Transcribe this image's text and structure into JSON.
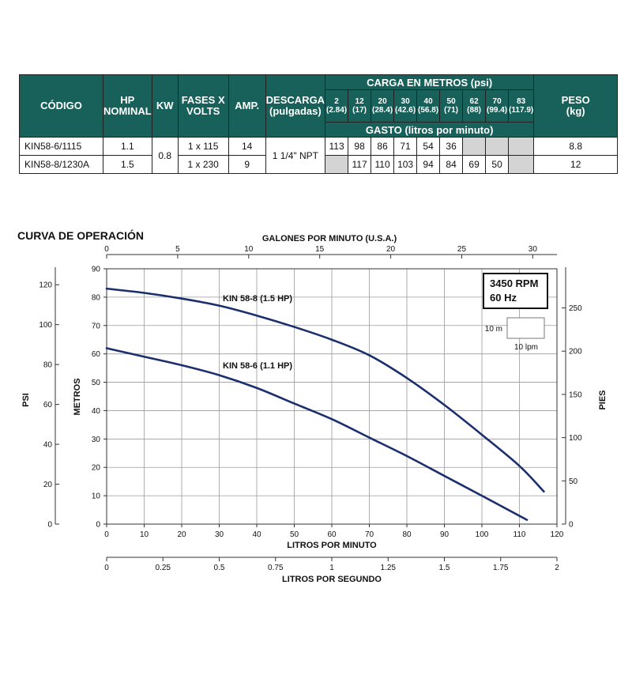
{
  "table": {
    "headers": {
      "codigo": "CÓDIGO",
      "hp_line1": "HP",
      "hp_line2": "NOMINAL",
      "kw": "KW",
      "fases_line1": "FASES X",
      "fases_line2": "VOLTS",
      "amp": "AMP.",
      "descarga_line1": "DESCARGA",
      "descarga_line2": "(pulgadas)",
      "carga": "CARGA EN METROS (psi)",
      "gasto": "GASTO (litros por minuto)",
      "peso_line1": "PESO",
      "peso_line2": "(kg)"
    },
    "heads": [
      {
        "m": "2",
        "psi": "(2.84)"
      },
      {
        "m": "12",
        "psi": "(17)"
      },
      {
        "m": "20",
        "psi": "(28.4)"
      },
      {
        "m": "30",
        "psi": "(42.6)"
      },
      {
        "m": "40",
        "psi": "(56.8)"
      },
      {
        "m": "50",
        "psi": "(71)"
      },
      {
        "m": "62",
        "psi": "(88)"
      },
      {
        "m": "70",
        "psi": "(99.4)"
      },
      {
        "m": "83",
        "psi": "(117.9)"
      }
    ],
    "shared": {
      "kw": "0.8",
      "descarga": "1 1/4\" NPT"
    },
    "rows": [
      {
        "codigo": "KIN58-6/1115",
        "hp": "1.1",
        "fases": "1 x 115",
        "amp": "14",
        "gasto": [
          "113",
          "98",
          "86",
          "71",
          "54",
          "36",
          "",
          "",
          ""
        ],
        "peso": "8.8"
      },
      {
        "codigo": "KIN58-8/1230A",
        "hp": "1.5",
        "fases": "1 x 230",
        "amp": "9",
        "gasto": [
          "",
          "117",
          "110",
          "103",
          "94",
          "84",
          "69",
          "50",
          ""
        ],
        "peso": "12"
      }
    ]
  },
  "chart_data": {
    "type": "line",
    "title": "CURVA DE OPERACIÓN",
    "xlabel": "LITROS POR MINUTO",
    "ylabel": "METROS",
    "xlim": [
      0,
      120
    ],
    "ylim": [
      0,
      90
    ],
    "x_ticks": [
      0,
      10,
      20,
      30,
      40,
      50,
      60,
      70,
      80,
      90,
      100,
      110,
      120
    ],
    "y_ticks": [
      0,
      10,
      20,
      30,
      40,
      50,
      60,
      70,
      80,
      90
    ],
    "grid": true,
    "secondary_axes": {
      "top": {
        "label": "GALONES POR MINUTO (U.S.A.)",
        "ticks": [
          0,
          5,
          10,
          15,
          20,
          25,
          30
        ],
        "lpm_per_unit": 3.785
      },
      "left": {
        "label": "PSI",
        "ticks": [
          0,
          20,
          40,
          60,
          80,
          100,
          120
        ],
        "m_per_unit": 0.7031
      },
      "right": {
        "label": "PIES",
        "ticks": [
          0,
          50,
          100,
          150,
          200,
          250
        ],
        "m_per_unit": 0.3048
      },
      "bottom": {
        "label": "LITROS POR SEGUNDO",
        "ticks": [
          "0",
          "0.25",
          "0.5",
          "0.75",
          "1",
          "1.25",
          "1.5",
          "1.75",
          "2"
        ],
        "lpm_per_unit": 60
      }
    },
    "series": [
      {
        "name": "KIN 58-8 (1.5 HP)",
        "color": "#1b2f6e",
        "x": [
          0,
          10,
          20,
          30,
          40,
          50,
          60,
          70,
          80,
          90,
          100,
          110,
          116.5
        ],
        "y": [
          83,
          81.5,
          79.5,
          77,
          73.5,
          69.5,
          65,
          59.5,
          51.5,
          42,
          31.5,
          20.5,
          11.5
        ]
      },
      {
        "name": "KIN 58-6 (1.1 HP)",
        "color": "#1b2f6e",
        "x": [
          0,
          10,
          20,
          30,
          40,
          50,
          60,
          70,
          80,
          90,
          100,
          112
        ],
        "y": [
          62,
          59,
          56,
          52.5,
          48,
          42.5,
          37,
          30.5,
          24,
          17,
          10,
          1.5
        ]
      }
    ],
    "info_box": {
      "rpm": "3450 RPM",
      "hz": "60 Hz",
      "scale_m": "10 m",
      "scale_lpm": "10 lpm"
    }
  }
}
